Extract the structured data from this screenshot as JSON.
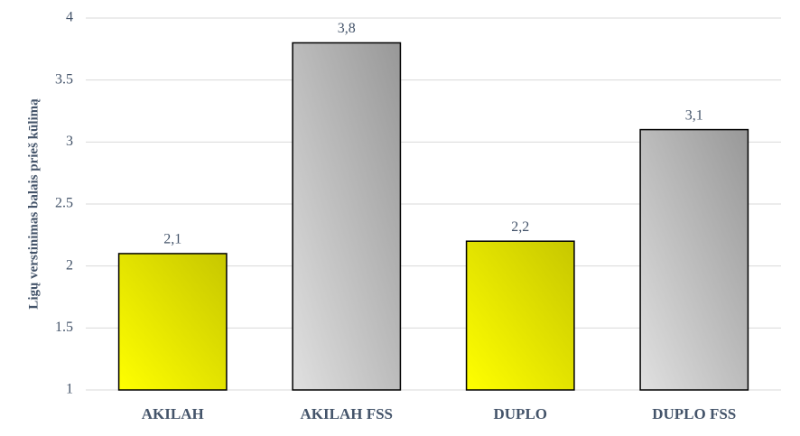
{
  "chart_data": {
    "type": "bar",
    "y_label": "Ligų verstinimas balais prieš kūlimą",
    "categories": [
      "AKILAH",
      "AKILAH FSS",
      "DUPLO",
      "DUPLO FSS"
    ],
    "values": [
      2.1,
      3.8,
      2.2,
      3.1
    ],
    "value_labels": [
      "2,1",
      "3,8",
      "2,2",
      "3,1"
    ],
    "colors": [
      "#ffff00",
      "#e0e0e0",
      "#ffff00",
      "#e0e0e0"
    ],
    "ylim": [
      1,
      4
    ],
    "yticks": [
      1,
      1.5,
      2,
      2.5,
      3,
      3.5,
      4
    ],
    "grid": true
  }
}
